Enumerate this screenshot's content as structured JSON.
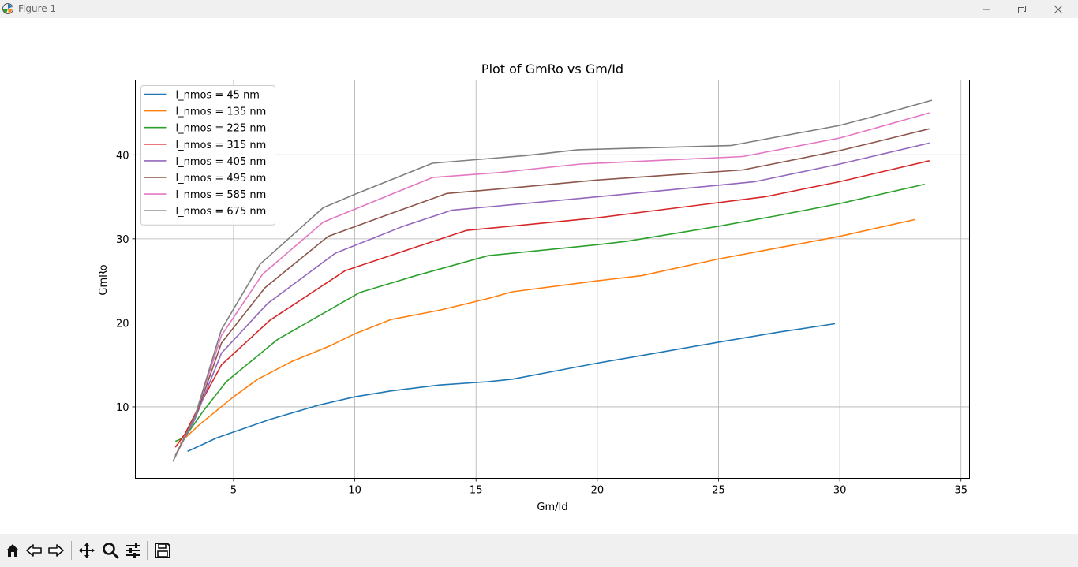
{
  "window": {
    "title": "Figure 1",
    "icons": [
      "matplotlib-logo-icon",
      "minimize-icon",
      "maximize-icon",
      "close-icon"
    ]
  },
  "toolbar": {
    "buttons": [
      "home-icon",
      "back-icon",
      "forward-icon",
      "pan-icon",
      "zoom-icon",
      "configure-subplots-icon",
      "save-icon"
    ]
  },
  "chart_data": {
    "type": "line",
    "title": "Plot of GmRo vs Gm/Id",
    "xlabel": "Gm/Id",
    "ylabel": "GmRo",
    "xlim": [
      0.95,
      35.35
    ],
    "ylim": [
      1.5,
      48.9
    ],
    "xticks": [
      5,
      10,
      15,
      20,
      25,
      30,
      35
    ],
    "yticks": [
      10,
      20,
      30,
      40
    ],
    "grid": true,
    "legend_position": "upper-left",
    "series": [
      {
        "name": "l_nmos = 45 nm",
        "color": "#1f77b4",
        "points": [
          [
            3.1,
            4.7
          ],
          [
            4.3,
            6.3
          ],
          [
            5.0,
            7.0
          ],
          [
            6.5,
            8.5
          ],
          [
            8.5,
            10.2
          ],
          [
            10.0,
            11.2
          ],
          [
            11.5,
            11.9
          ],
          [
            13.5,
            12.6
          ],
          [
            15.5,
            13.0
          ],
          [
            16.5,
            13.3
          ],
          [
            18.5,
            14.4
          ],
          [
            20.0,
            15.2
          ],
          [
            22.0,
            16.2
          ],
          [
            25.0,
            17.7
          ],
          [
            27.5,
            18.9
          ],
          [
            29.8,
            19.9
          ]
        ]
      },
      {
        "name": "l_nmos = 135 nm",
        "color": "#ff7f0e",
        "points": [
          [
            2.8,
            5.6
          ],
          [
            3.0,
            6.3
          ],
          [
            3.6,
            7.9
          ],
          [
            5.0,
            11.2
          ],
          [
            6.0,
            13.3
          ],
          [
            7.4,
            15.4
          ],
          [
            9.0,
            17.3
          ],
          [
            10.0,
            18.7
          ],
          [
            11.5,
            20.4
          ],
          [
            13.5,
            21.5
          ],
          [
            15.5,
            22.9
          ],
          [
            16.5,
            23.7
          ],
          [
            20.0,
            25.0
          ],
          [
            21.8,
            25.6
          ],
          [
            25.0,
            27.6
          ],
          [
            30.0,
            30.3
          ],
          [
            33.1,
            32.3
          ]
        ]
      },
      {
        "name": "l_nmos = 225 nm",
        "color": "#2ca02c",
        "points": [
          [
            2.6,
            5.9
          ],
          [
            3.0,
            6.4
          ],
          [
            3.7,
            9.3
          ],
          [
            4.7,
            13.0
          ],
          [
            6.8,
            18.0
          ],
          [
            8.5,
            20.8
          ],
          [
            10.2,
            23.6
          ],
          [
            12.5,
            25.6
          ],
          [
            15.5,
            28.0
          ],
          [
            20.0,
            29.3
          ],
          [
            21.2,
            29.7
          ],
          [
            25.0,
            31.5
          ],
          [
            27.5,
            32.8
          ],
          [
            30.0,
            34.2
          ],
          [
            33.5,
            36.5
          ]
        ]
      },
      {
        "name": "l_nmos = 315 nm",
        "color": "#d62728",
        "points": [
          [
            2.6,
            5.2
          ],
          [
            3.0,
            6.8
          ],
          [
            3.6,
            10.2
          ],
          [
            4.5,
            15.0
          ],
          [
            6.5,
            20.3
          ],
          [
            9.6,
            26.2
          ],
          [
            12.5,
            29.0
          ],
          [
            14.6,
            31.0
          ],
          [
            17.5,
            31.8
          ],
          [
            20.0,
            32.5
          ],
          [
            26.9,
            35.0
          ],
          [
            30.0,
            36.8
          ],
          [
            33.7,
            39.3
          ]
        ]
      },
      {
        "name": "l_nmos = 405 nm",
        "color": "#9467bd",
        "points": [
          [
            2.6,
            4.2
          ],
          [
            3.4,
            8.5
          ],
          [
            4.5,
            16.4
          ],
          [
            6.4,
            22.3
          ],
          [
            9.2,
            28.3
          ],
          [
            12.0,
            31.5
          ],
          [
            14.0,
            33.4
          ],
          [
            17.0,
            34.2
          ],
          [
            20.0,
            35.0
          ],
          [
            26.5,
            36.8
          ],
          [
            30.0,
            38.9
          ],
          [
            33.7,
            41.4
          ]
        ]
      },
      {
        "name": "l_nmos = 495 nm",
        "color": "#8c564b",
        "points": [
          [
            2.6,
            4.2
          ],
          [
            3.5,
            9.4
          ],
          [
            4.5,
            17.6
          ],
          [
            6.3,
            24.2
          ],
          [
            8.9,
            30.3
          ],
          [
            11.0,
            32.5
          ],
          [
            13.8,
            35.4
          ],
          [
            17.0,
            36.2
          ],
          [
            20.0,
            37.0
          ],
          [
            26.0,
            38.2
          ],
          [
            30.0,
            40.5
          ],
          [
            31.3,
            41.4
          ],
          [
            33.7,
            43.1
          ]
        ]
      },
      {
        "name": "l_nmos = 585 nm",
        "color": "#e377c2",
        "points": [
          [
            2.5,
            3.5
          ],
          [
            3.4,
            8.8
          ],
          [
            4.5,
            18.5
          ],
          [
            6.2,
            25.8
          ],
          [
            8.7,
            32.0
          ],
          [
            11.0,
            34.7
          ],
          [
            13.2,
            37.3
          ],
          [
            16.0,
            37.9
          ],
          [
            19.3,
            38.9
          ],
          [
            26.0,
            39.8
          ],
          [
            30.0,
            42.0
          ],
          [
            31.0,
            42.8
          ],
          [
            33.7,
            45.0
          ]
        ]
      },
      {
        "name": "l_nmos = 675 nm",
        "color": "#7f7f7f",
        "points": [
          [
            2.5,
            3.5
          ],
          [
            3.4,
            8.8
          ],
          [
            4.5,
            19.2
          ],
          [
            6.1,
            27.0
          ],
          [
            8.7,
            33.7
          ],
          [
            10.0,
            35.3
          ],
          [
            13.2,
            39.0
          ],
          [
            17.0,
            39.9
          ],
          [
            19.2,
            40.6
          ],
          [
            25.5,
            41.1
          ],
          [
            30.0,
            43.5
          ],
          [
            31.2,
            44.4
          ],
          [
            33.8,
            46.5
          ]
        ]
      }
    ]
  }
}
